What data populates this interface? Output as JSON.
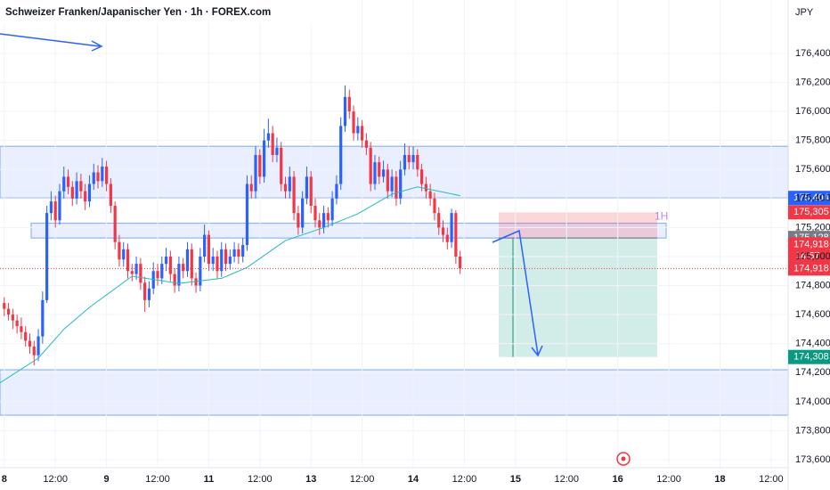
{
  "chart_data": {
    "type": "candlestick",
    "title": "Schweizer Franken/Japanischer Yen · 1h · FOREX.com",
    "currency": "JPY",
    "up_color": "#2962ff",
    "down_color": "#f23645",
    "ylim": [
      173545,
      176768
    ],
    "yticks": [
      {
        "value": 173600,
        "label": "173,600"
      },
      {
        "value": 173800,
        "label": "173,800"
      },
      {
        "value": 174000,
        "label": "174,000"
      },
      {
        "value": 174200,
        "label": "174,200"
      },
      {
        "value": 174400,
        "label": "174,400"
      },
      {
        "value": 174600,
        "label": "174,600"
      },
      {
        "value": 174800,
        "label": "174,800"
      },
      {
        "value": 175000,
        "label": "175,000"
      },
      {
        "value": 175200,
        "label": "175,200"
      },
      {
        "value": 175400,
        "label": "175,400"
      },
      {
        "value": 175600,
        "label": "175,600"
      },
      {
        "value": 175800,
        "label": "175,800"
      },
      {
        "value": 176000,
        "label": "176,000"
      },
      {
        "value": 176200,
        "label": "176,200"
      },
      {
        "value": 176400,
        "label": "176,400"
      }
    ],
    "xlim": [
      -1,
      184
    ],
    "xticks": [
      {
        "value": 0,
        "label": "8"
      },
      {
        "value": 12,
        "label": "12:00"
      },
      {
        "value": 24,
        "label": "9"
      },
      {
        "value": 36,
        "label": "12:00"
      },
      {
        "value": 48,
        "label": "11"
      },
      {
        "value": 60,
        "label": "12:00"
      },
      {
        "value": 72,
        "label": "13"
      },
      {
        "value": 84,
        "label": "12:00"
      },
      {
        "value": 96,
        "label": "14"
      },
      {
        "value": 108,
        "label": "12:00"
      },
      {
        "value": 120,
        "label": "15"
      },
      {
        "value": 132,
        "label": "12:00"
      },
      {
        "value": 144,
        "label": "16"
      },
      {
        "value": 156,
        "label": "12:00"
      },
      {
        "value": 168,
        "label": "18"
      },
      {
        "value": 180,
        "label": "12:00"
      }
    ],
    "open": [
      174680,
      174640,
      174600,
      174560,
      174520,
      174480,
      174420,
      174380,
      174320,
      174450,
      174700,
      175300,
      175380,
      175250,
      175450,
      175550,
      175480,
      175400,
      175520,
      175450,
      175380,
      175500,
      175580,
      175520,
      175620,
      175500,
      175350,
      175100,
      174980,
      175050,
      174900,
      174880,
      174950,
      174820,
      174700,
      174780,
      174900,
      174850,
      174950,
      175000,
      174880,
      174800,
      174950,
      174900,
      175050,
      174850,
      174800,
      175000,
      175150,
      174950,
      175000,
      174900,
      175050,
      174950,
      175000,
      175050,
      175000,
      175080,
      175500,
      175450,
      175700,
      175550,
      175800,
      175850,
      175700,
      175750,
      175500,
      175450,
      175550,
      175300,
      175200,
      175400,
      175550,
      175350,
      175250,
      175200,
      175300,
      175250,
      175400,
      175500,
      175900,
      176100,
      176000,
      175850,
      175900,
      175800,
      175750,
      175500,
      175650,
      175550,
      175600,
      175450,
      175550,
      175400,
      175600,
      175700,
      175650,
      175700,
      175600,
      175500,
      175450,
      175400,
      175300,
      175200,
      175150,
      175100,
      175300,
      175000
    ],
    "high": [
      174720,
      174680,
      174640,
      174600,
      174580,
      174520,
      174470,
      174420,
      174500,
      174760,
      175350,
      175450,
      175420,
      175500,
      175620,
      175600,
      175520,
      175580,
      175570,
      175500,
      175560,
      175640,
      175630,
      175680,
      175660,
      175540,
      175380,
      175150,
      175100,
      175090,
      174950,
      175000,
      174990,
      174860,
      174830,
      174960,
      174950,
      175000,
      175060,
      175040,
      174920,
      175000,
      174990,
      175100,
      175090,
      174890,
      175060,
      175220,
      175180,
      175060,
      175040,
      175100,
      175090,
      175050,
      175100,
      175090,
      175130,
      175560,
      175560,
      175760,
      175740,
      175880,
      175950,
      175900,
      175820,
      175790,
      175550,
      175620,
      175590,
      175350,
      175450,
      175620,
      175590,
      175400,
      175300,
      175350,
      175340,
      175450,
      175560,
      175960,
      176180,
      176150,
      176040,
      175960,
      175940,
      175850,
      175790,
      175700,
      175690,
      175660,
      175640,
      175600,
      175590,
      175660,
      175780,
      175760,
      175760,
      175740,
      175640,
      175550,
      175500,
      175440,
      175340,
      175250,
      175200,
      175330,
      175320,
      175040
    ],
    "low": [
      174590,
      174560,
      174500,
      174470,
      174430,
      174380,
      174330,
      174250,
      174280,
      174400,
      174680,
      175250,
      175200,
      175220,
      175400,
      175430,
      175350,
      175360,
      175400,
      175320,
      175340,
      175460,
      175470,
      175480,
      175450,
      175300,
      175050,
      174930,
      174930,
      174850,
      174830,
      174840,
      174770,
      174620,
      174650,
      174740,
      174800,
      174810,
      174900,
      174830,
      174750,
      174760,
      174850,
      174860,
      174800,
      174750,
      174760,
      174960,
      174900,
      174900,
      174850,
      174860,
      174900,
      174910,
      174960,
      174950,
      174960,
      175040,
      175400,
      175400,
      175500,
      175510,
      175750,
      175650,
      175650,
      175450,
      175400,
      175400,
      175250,
      175150,
      175160,
      175360,
      175300,
      175200,
      175150,
      175160,
      175200,
      175210,
      175360,
      175460,
      175860,
      175950,
      175800,
      175800,
      175750,
      175700,
      175450,
      175460,
      175500,
      175510,
      175400,
      175410,
      175350,
      175360,
      175560,
      175600,
      175600,
      175550,
      175450,
      175400,
      175350,
      175250,
      175150,
      175100,
      175050,
      175060,
      174950,
      174880
    ],
    "close": [
      174640,
      174600,
      174560,
      174520,
      174480,
      174420,
      174380,
      174320,
      174450,
      174700,
      175300,
      175380,
      175250,
      175450,
      175550,
      175480,
      175400,
      175520,
      175450,
      175380,
      175500,
      175580,
      175520,
      175620,
      175500,
      175350,
      175100,
      174980,
      175050,
      174900,
      174880,
      174950,
      174820,
      174700,
      174780,
      174900,
      174850,
      174950,
      175000,
      174880,
      174800,
      174950,
      174900,
      175050,
      174850,
      174800,
      175000,
      175150,
      174950,
      175000,
      174900,
      175050,
      174950,
      175000,
      175050,
      175000,
      175080,
      175500,
      175450,
      175700,
      175550,
      175800,
      175850,
      175700,
      175750,
      175500,
      175450,
      175550,
      175300,
      175200,
      175400,
      175550,
      175350,
      175250,
      175200,
      175300,
      175250,
      175400,
      175500,
      175900,
      176100,
      176000,
      175850,
      175900,
      175800,
      175750,
      175500,
      175650,
      175550,
      175600,
      175450,
      175550,
      175400,
      175600,
      175700,
      175650,
      175700,
      175600,
      175500,
      175450,
      175400,
      175300,
      175200,
      175150,
      175100,
      175300,
      175000,
      174918
    ],
    "ma": {
      "color": "#22b8c9",
      "x": [
        -1,
        8,
        14,
        20,
        30,
        41,
        51,
        57,
        66,
        75,
        83,
        91,
        97,
        107
      ],
      "values": [
        174130,
        174300,
        174500,
        174650,
        174865,
        174815,
        174850,
        174925,
        175110,
        175200,
        175295,
        175430,
        175480,
        175420
      ]
    },
    "zones": [
      {
        "top": 175760,
        "bottom": 175404
      },
      {
        "top": 175230,
        "bottom": 175128
      },
      {
        "top": 174220,
        "bottom": 173907
      }
    ],
    "position": {
      "stop": 175305,
      "entry": 175128,
      "target": 174308,
      "label": "1H"
    },
    "price_labels": [
      {
        "value": 175404,
        "label": "175,404",
        "color": "#2962ff"
      },
      {
        "value": 175305,
        "label": "175,305",
        "color": "#f23645"
      },
      {
        "value": 175128,
        "label": "175,128",
        "color": "#787b86"
      },
      {
        "value": 174918,
        "label": "174,918",
        "color": "#f23645",
        "countdown": "14:57"
      },
      {
        "value": 174918,
        "label": "174,918",
        "color": "#f23645"
      },
      {
        "value": 174308,
        "label": "174,308",
        "color": "#089981"
      }
    ]
  }
}
